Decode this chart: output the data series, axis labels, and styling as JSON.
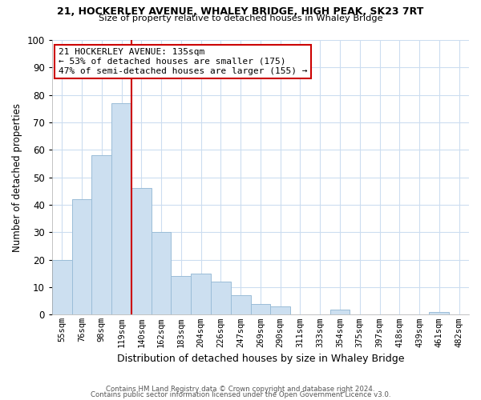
{
  "title1": "21, HOCKERLEY AVENUE, WHALEY BRIDGE, HIGH PEAK, SK23 7RT",
  "title2": "Size of property relative to detached houses in Whaley Bridge",
  "xlabel": "Distribution of detached houses by size in Whaley Bridge",
  "ylabel": "Number of detached properties",
  "bar_labels": [
    "55sqm",
    "76sqm",
    "98sqm",
    "119sqm",
    "140sqm",
    "162sqm",
    "183sqm",
    "204sqm",
    "226sqm",
    "247sqm",
    "269sqm",
    "290sqm",
    "311sqm",
    "333sqm",
    "354sqm",
    "375sqm",
    "397sqm",
    "418sqm",
    "439sqm",
    "461sqm",
    "482sqm"
  ],
  "bar_heights": [
    20,
    42,
    58,
    77,
    46,
    30,
    14,
    15,
    12,
    7,
    4,
    3,
    0,
    0,
    2,
    0,
    0,
    0,
    0,
    1,
    0
  ],
  "bar_color": "#ccdff0",
  "bar_edge_color": "#9bbdd8",
  "vline_color": "#cc0000",
  "vline_x": 3.5,
  "annotation_title": "21 HOCKERLEY AVENUE: 135sqm",
  "annotation_line1": "← 53% of detached houses are smaller (175)",
  "annotation_line2": "47% of semi-detached houses are larger (155) →",
  "annotation_box_color": "#ffffff",
  "annotation_border_color": "#cc0000",
  "ylim": [
    0,
    100
  ],
  "yticks": [
    0,
    10,
    20,
    30,
    40,
    50,
    60,
    70,
    80,
    90,
    100
  ],
  "footer1": "Contains HM Land Registry data © Crown copyright and database right 2024.",
  "footer2": "Contains public sector information licensed under the Open Government Licence v3.0.",
  "bg_color": "#ffffff",
  "grid_color": "#ccddf0"
}
